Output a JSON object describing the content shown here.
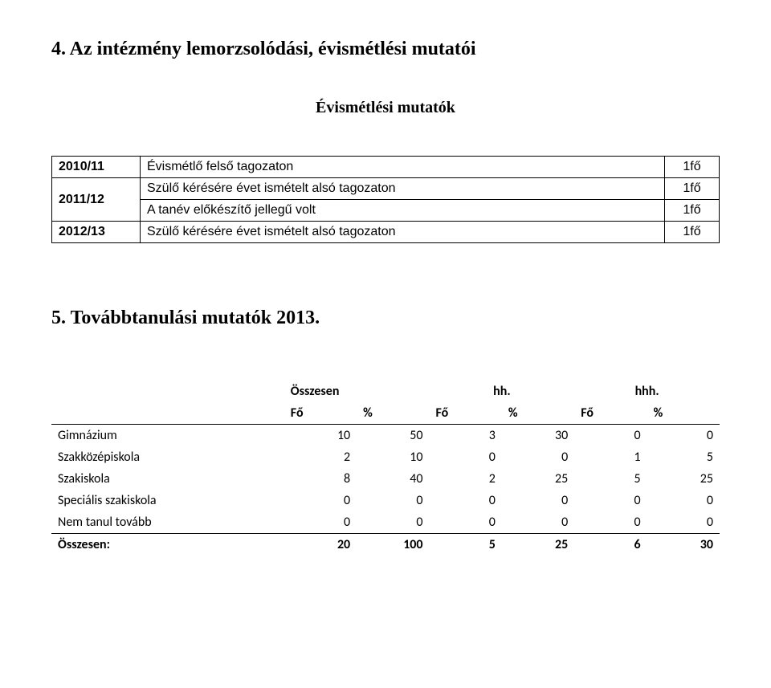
{
  "section4": {
    "title": "4.  Az intézmény lemorzsolódási, évismétlési mutatói",
    "subtitle": "Évismétlési mutatók",
    "rows": [
      {
        "year": "2010/11",
        "desc": "Évismétlő felső tagozaton",
        "count": "1fő"
      },
      {
        "year": "2011/12",
        "desc": "Szülő kérésére évet ismételt alsó tagozaton",
        "count": "1fő"
      },
      {
        "year": "",
        "desc": "A tanév előkészítő jellegű volt",
        "count": "1fő"
      },
      {
        "year": "2012/13",
        "desc": "Szülő kérésére évet ismételt alsó tagozaton",
        "count": "1fő"
      }
    ]
  },
  "section5": {
    "title": "5.  Továbbtanulási mutatók 2013.",
    "headers": {
      "group1": "Összesen",
      "group2": "hh.",
      "group3": "hhh.",
      "fo": "Fő",
      "pct": "%"
    },
    "rows": [
      {
        "label": "Gimnázium",
        "v": [
          "10",
          "50",
          "3",
          "30",
          "0",
          "0"
        ]
      },
      {
        "label": "Szakközépiskola",
        "v": [
          "2",
          "10",
          "0",
          "0",
          "1",
          "5"
        ]
      },
      {
        "label": "Szakiskola",
        "v": [
          "8",
          "40",
          "2",
          "25",
          "5",
          "25"
        ]
      },
      {
        "label": "Speciális szakiskola",
        "v": [
          "0",
          "0",
          "0",
          "0",
          "0",
          "0"
        ]
      },
      {
        "label": "Nem tanul tovább",
        "v": [
          "0",
          "0",
          "0",
          "0",
          "0",
          "0"
        ]
      }
    ],
    "total": {
      "label": "Összesen:",
      "v": [
        "20",
        "100",
        "5",
        "25",
        "6",
        "30"
      ]
    }
  }
}
